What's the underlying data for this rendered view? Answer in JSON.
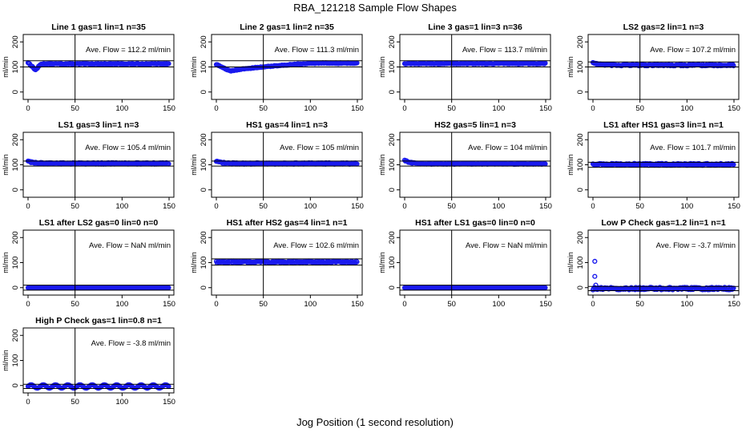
{
  "figure": {
    "title": "RBA_121218  Sample Flow Shapes",
    "xlabel": "Jog Position (1 second resolution)"
  },
  "chart_data": [
    {
      "type": "scatter",
      "title": "Line 1 gas=1 lin=1 n=35",
      "annotation": "Ave. Flow =  112.2  ml/min",
      "ylabel": "ml/min",
      "xlim": [
        0,
        150
      ],
      "ylim": [
        -20,
        220
      ],
      "xticks": [
        0,
        50,
        100,
        150
      ],
      "yticks": [
        0,
        100,
        200
      ],
      "vline": 50,
      "hlines": [
        100,
        125
      ],
      "series": {
        "pattern": "dip",
        "base": 112.2,
        "noise": 2,
        "start": [
          0,
          118
        ],
        "dip_min": 88,
        "dip_at": 8,
        "recover": 14
      }
    },
    {
      "type": "scatter",
      "title": "Line 2 gas=1 lin=2 n=35",
      "annotation": "Ave. Flow =  111.3  ml/min",
      "ylabel": "ml/min",
      "xlim": [
        0,
        150
      ],
      "ylim": [
        -20,
        220
      ],
      "xticks": [
        0,
        50,
        100,
        150
      ],
      "yticks": [
        0,
        100,
        200
      ],
      "vline": 50,
      "hlines": [
        100,
        125
      ],
      "series": {
        "pattern": "slowdip",
        "base": 115,
        "noise": 1.5,
        "start": [
          0,
          110
        ],
        "dip_min": 83,
        "dip_at": 15,
        "recover": 100
      }
    },
    {
      "type": "scatter",
      "title": "Line 3 gas=1 lin=3 n=36",
      "annotation": "Ave. Flow =  113.7  ml/min",
      "ylabel": "ml/min",
      "xlim": [
        0,
        150
      ],
      "ylim": [
        -20,
        220
      ],
      "xticks": [
        0,
        50,
        100,
        150
      ],
      "yticks": [
        0,
        100,
        200
      ],
      "vline": 50,
      "hlines": [
        100,
        125
      ],
      "series": {
        "pattern": "flat",
        "base": 113.7,
        "noise": 2
      }
    },
    {
      "type": "scatter",
      "title": "LS2 gas=2 lin=1 n=3",
      "annotation": "Ave. Flow =  107.2  ml/min",
      "ylabel": "ml/min",
      "xlim": [
        0,
        150
      ],
      "ylim": [
        -20,
        220
      ],
      "xticks": [
        0,
        50,
        100,
        150
      ],
      "yticks": [
        0,
        100,
        200
      ],
      "vline": 50,
      "hlines": [
        100,
        120
      ],
      "series": {
        "pattern": "decay",
        "base": 107.2,
        "noise": 3,
        "start": [
          0,
          118
        ]
      }
    },
    {
      "type": "scatter",
      "title": "LS1 gas=3 lin=1 n=3",
      "annotation": "Ave. Flow =  105.4  ml/min",
      "ylabel": "ml/min",
      "xlim": [
        0,
        150
      ],
      "ylim": [
        -20,
        220
      ],
      "xticks": [
        0,
        50,
        100,
        150
      ],
      "yticks": [
        0,
        100,
        200
      ],
      "vline": 50,
      "hlines": [
        95,
        115
      ],
      "series": {
        "pattern": "decay",
        "base": 105.4,
        "noise": 3,
        "start": [
          0,
          115
        ]
      }
    },
    {
      "type": "scatter",
      "title": "HS1 gas=4 lin=1 n=3",
      "annotation": "Ave. Flow =  105  ml/min",
      "ylabel": "ml/min",
      "xlim": [
        0,
        150
      ],
      "ylim": [
        -20,
        220
      ],
      "xticks": [
        0,
        50,
        100,
        150
      ],
      "yticks": [
        0,
        100,
        200
      ],
      "vline": 50,
      "hlines": [
        95,
        115
      ],
      "series": {
        "pattern": "decay",
        "base": 105,
        "noise": 3,
        "start": [
          0,
          113
        ]
      }
    },
    {
      "type": "scatter",
      "title": "HS2 gas=5 lin=1 n=3",
      "annotation": "Ave. Flow =  104  ml/min",
      "ylabel": "ml/min",
      "xlim": [
        0,
        150
      ],
      "ylim": [
        -20,
        220
      ],
      "xticks": [
        0,
        50,
        100,
        150
      ],
      "yticks": [
        0,
        100,
        200
      ],
      "vline": 50,
      "hlines": [
        95,
        115
      ],
      "series": {
        "pattern": "decay",
        "base": 104,
        "noise": 2,
        "start": [
          0,
          118
        ]
      }
    },
    {
      "type": "scatter",
      "title": "LS1 after HS1 gas=3 lin=1 n=1",
      "annotation": "Ave. Flow =  101.7  ml/min",
      "ylabel": "ml/min",
      "xlim": [
        0,
        150
      ],
      "ylim": [
        -20,
        220
      ],
      "xticks": [
        0,
        50,
        100,
        150
      ],
      "yticks": [
        0,
        100,
        200
      ],
      "vline": 50,
      "hlines": [
        90,
        110
      ],
      "series": {
        "pattern": "flat",
        "base": 101.7,
        "noise": 4
      }
    },
    {
      "type": "scatter",
      "title": "LS1 after LS2 gas=0 lin=0 n=0",
      "annotation": "Ave. Flow =  NaN  ml/min",
      "ylabel": "ml/min",
      "xlim": [
        0,
        150
      ],
      "ylim": [
        -20,
        220
      ],
      "xticks": [
        0,
        50,
        100,
        150
      ],
      "yticks": [
        0,
        100,
        200
      ],
      "vline": 50,
      "hlines": [
        -10,
        10
      ],
      "series": {
        "pattern": "flat",
        "base": 0,
        "noise": 0
      }
    },
    {
      "type": "scatter",
      "title": "HS1 after HS2 gas=4 lin=1 n=1",
      "annotation": "Ave. Flow =  102.6  ml/min",
      "ylabel": "ml/min",
      "xlim": [
        0,
        150
      ],
      "ylim": [
        -20,
        220
      ],
      "xticks": [
        0,
        50,
        100,
        150
      ],
      "yticks": [
        0,
        100,
        200
      ],
      "vline": 50,
      "hlines": [
        90,
        115
      ],
      "series": {
        "pattern": "flat",
        "base": 102.6,
        "noise": 4
      }
    },
    {
      "type": "scatter",
      "title": "HS1 after LS1 gas=0 lin=0 n=0",
      "annotation": "Ave. Flow =  NaN  ml/min",
      "ylabel": "ml/min",
      "xlim": [
        0,
        150
      ],
      "ylim": [
        -20,
        220
      ],
      "xticks": [
        0,
        50,
        100,
        150
      ],
      "yticks": [
        0,
        100,
        200
      ],
      "vline": 50,
      "hlines": [
        -10,
        10
      ],
      "series": {
        "pattern": "flat",
        "base": 0,
        "noise": 0
      }
    },
    {
      "type": "scatter",
      "title": "Low P Check gas=1.2 lin=1 n=1",
      "annotation": "Ave. Flow =  -3.7  ml/min",
      "ylabel": "ml/min",
      "xlim": [
        0,
        150
      ],
      "ylim": [
        -20,
        220
      ],
      "xticks": [
        0,
        50,
        100,
        150
      ],
      "yticks": [
        0,
        100,
        200
      ],
      "vline": 50,
      "hlines": [
        -12,
        5
      ],
      "series": {
        "pattern": "flat",
        "base": -3.7,
        "noise": 5,
        "outliers": [
          [
            2,
            105
          ],
          [
            2,
            45
          ],
          [
            3,
            10
          ]
        ]
      }
    },
    {
      "type": "scatter",
      "title": "High P Check gas=1 lin=0.8 n=1",
      "annotation": "Ave. Flow =  -3.8  ml/min",
      "ylabel": "ml/min",
      "xlim": [
        0,
        150
      ],
      "ylim": [
        -20,
        220
      ],
      "xticks": [
        0,
        50,
        100,
        150
      ],
      "yticks": [
        0,
        100,
        200
      ],
      "vline": 50,
      "hlines": [
        -12,
        5
      ],
      "series": {
        "pattern": "wave",
        "base": -3.8,
        "amp": 7,
        "period": 13
      }
    }
  ]
}
